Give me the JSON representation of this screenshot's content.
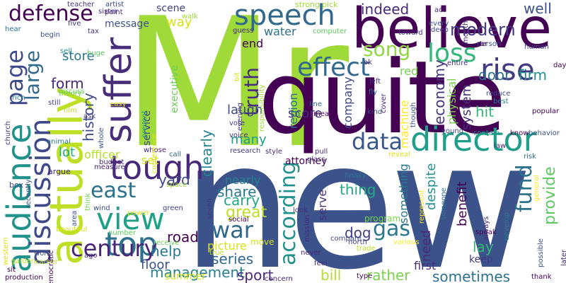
{
  "words": [
    {
      "text": "Mr",
      "color": "#a0da39"
    },
    {
      "text": "new",
      "color": "#3b528b"
    },
    {
      "text": "quite",
      "color": "#440154"
    },
    {
      "text": "believe",
      "color": "#440154"
    },
    {
      "text": "actually",
      "color": "#bddf26"
    },
    {
      "text": "audience",
      "color": "#21918c"
    },
    {
      "text": "director",
      "color": "#1f9e89"
    },
    {
      "text": "suffer",
      "color": "#472d7b"
    },
    {
      "text": "speech",
      "color": "#31688e"
    },
    {
      "text": "tough",
      "color": "#482878"
    },
    {
      "text": "top",
      "color": "#2c728e"
    },
    {
      "text": "view",
      "color": "#1fa187"
    },
    {
      "text": "discussion",
      "color": "#3e4989"
    },
    {
      "text": "defense",
      "color": "#440154"
    },
    {
      "text": "rise",
      "color": "#443983"
    },
    {
      "text": "loss",
      "color": "#35b779"
    },
    {
      "text": "effect",
      "color": "#31688e"
    },
    {
      "text": "data",
      "color": "#39568c"
    },
    {
      "text": "war",
      "color": "#31688e"
    },
    {
      "text": "century",
      "color": "#482475"
    },
    {
      "text": "page",
      "color": "#3e4989"
    },
    {
      "text": "east",
      "color": "#2c728e"
    },
    {
      "text": "according",
      "color": "#21918c"
    },
    {
      "text": "song",
      "color": "#90d743"
    },
    {
      "text": "truth",
      "color": "#472d7b"
    },
    {
      "text": "large",
      "color": "#31688e"
    },
    {
      "text": "fund",
      "color": "#2c728e"
    },
    {
      "text": "gas",
      "color": "#2a788e"
    },
    {
      "text": "economy",
      "color": "#46327e"
    },
    {
      "text": "modern",
      "color": "#443983"
    },
    {
      "text": "indeed",
      "color": "#482878"
    },
    {
      "text": "well",
      "color": "#3b528b"
    },
    {
      "text": "provide",
      "color": "#5ec962"
    },
    {
      "text": "great",
      "color": "#bddf26"
    },
    {
      "text": "management",
      "color": "#26828e"
    },
    {
      "text": "sometimes",
      "color": "#2c728e"
    },
    {
      "text": "sport",
      "color": "#482878"
    },
    {
      "text": "series",
      "color": "#31688e"
    },
    {
      "text": "rather",
      "color": "#7ad151"
    },
    {
      "text": "bill",
      "color": "#b5de2b"
    },
    {
      "text": "help",
      "color": "#2a788e"
    },
    {
      "text": "road",
      "color": "#440154"
    },
    {
      "text": "floor",
      "color": "#3b528b"
    },
    {
      "text": "dog",
      "color": "#404387"
    },
    {
      "text": "thing",
      "color": "#22a884"
    },
    {
      "text": "share",
      "color": "#2a788e"
    },
    {
      "text": "yard",
      "color": "#3e4989"
    },
    {
      "text": "carry",
      "color": "#22a884"
    },
    {
      "text": "hit",
      "color": "#35b779"
    },
    {
      "text": "door",
      "color": "#2c728e"
    },
    {
      "text": "firm",
      "color": "#21918c"
    },
    {
      "text": "history",
      "color": "#3e4989"
    },
    {
      "text": "form",
      "color": "#482878"
    },
    {
      "text": "store",
      "color": "#2a788e"
    },
    {
      "text": "lot",
      "color": "#22a884"
    },
    {
      "text": "set",
      "color": "#d8e219"
    },
    {
      "text": "officer",
      "color": "#b5de2b"
    },
    {
      "text": "water",
      "color": "#2c728e"
    },
    {
      "text": "end",
      "color": "#440154"
    },
    {
      "text": "way",
      "color": "#d8e219"
    },
    {
      "text": "scene",
      "color": "#404387"
    },
    {
      "text": "red",
      "color": "#7ad151"
    },
    {
      "text": "clearly",
      "color": "#26828e"
    },
    {
      "text": "laugh",
      "color": "#3e4989"
    },
    {
      "text": "many",
      "color": "#1f9e89"
    },
    {
      "text": "score",
      "color": "#472d7b"
    },
    {
      "text": "picture",
      "color": "#d8e219"
    },
    {
      "text": "nearly",
      "color": "#26828e"
    },
    {
      "text": "lay",
      "color": "#35b779"
    },
    {
      "text": "first",
      "color": "#472d7b"
    },
    {
      "text": "keep",
      "color": "#443983"
    },
    {
      "text": "need",
      "color": "#482878"
    },
    {
      "text": "attorney",
      "color": "#440154"
    },
    {
      "text": "benefit",
      "color": "#440154"
    },
    {
      "text": "region",
      "color": "#2c728e"
    },
    {
      "text": "company",
      "color": "#3e4989"
    },
    {
      "text": "machine",
      "color": "#fde725"
    },
    {
      "text": "something",
      "color": "#2a788e"
    },
    {
      "text": "despite",
      "color": "#21918c"
    },
    {
      "text": "system",
      "color": "#472d7b"
    },
    {
      "text": "physical",
      "color": "#7ad151"
    },
    {
      "text": "executive",
      "color": "#6ece58"
    },
    {
      "text": "service",
      "color": "#404387"
    },
    {
      "text": "serve",
      "color": "#46327e"
    },
    {
      "text": "program",
      "color": "#7ad151"
    },
    {
      "text": "summer",
      "color": "#d8e219"
    },
    {
      "text": "message",
      "color": "#3b528b"
    },
    {
      "text": "strong",
      "color": "#a0da39"
    },
    {
      "text": "pick",
      "color": "#a0da39"
    },
    {
      "text": "teacher",
      "color": "#46327e"
    },
    {
      "text": "artist",
      "color": "#3b528b"
    },
    {
      "text": "point",
      "color": "#482878"
    },
    {
      "text": "five",
      "color": "#46327e"
    },
    {
      "text": "tax",
      "color": "#46327e"
    },
    {
      "text": "hear",
      "color": "#2c728e"
    },
    {
      "text": "sell",
      "color": "#21918c"
    },
    {
      "text": "huge",
      "color": "#5ec962"
    },
    {
      "text": "rich",
      "color": "#26828e"
    },
    {
      "text": "still",
      "color": "#404387"
    },
    {
      "text": "theory",
      "color": "#7ad151"
    },
    {
      "text": "discuss",
      "color": "#6ece58"
    },
    {
      "text": "film",
      "color": "#bddf26"
    },
    {
      "text": "church",
      "color": "#443983"
    },
    {
      "text": "animal",
      "color": "#2a788e"
    },
    {
      "text": "argue",
      "color": "#482878"
    },
    {
      "text": "box",
      "color": "#3e4989"
    },
    {
      "text": "budget",
      "color": "#482878"
    },
    {
      "text": "measure",
      "color": "#482878"
    },
    {
      "text": "wind",
      "color": "#3b528b"
    },
    {
      "text": "whose",
      "color": "#482878"
    },
    {
      "text": "call",
      "color": "#31688e"
    },
    {
      "text": "green",
      "color": "#404387"
    },
    {
      "text": "guess",
      "color": "#482878"
    },
    {
      "text": "vote",
      "color": "#443983"
    },
    {
      "text": "voice",
      "color": "#46327e"
    },
    {
      "text": "research",
      "color": "#443983"
    },
    {
      "text": "style",
      "color": "#472d7b"
    },
    {
      "text": "social",
      "color": "#440154"
    },
    {
      "text": "move",
      "color": "#d8e219"
    },
    {
      "text": "concern",
      "color": "#482878"
    },
    {
      "text": "never",
      "color": "#482878"
    },
    {
      "text": "feel",
      "color": "#472d7b"
    },
    {
      "text": "type",
      "color": "#440154"
    },
    {
      "text": "left",
      "color": "#46327e"
    },
    {
      "text": "ok",
      "color": "#482878"
    },
    {
      "text": "mean",
      "color": "#440154"
    },
    {
      "text": "line",
      "color": "#31688e"
    },
    {
      "text": "kind",
      "color": "#3e4989"
    },
    {
      "text": "reveal",
      "color": "#dde318"
    },
    {
      "text": "finally",
      "color": "#2c728e"
    },
    {
      "text": "compare",
      "color": "#3e4989"
    },
    {
      "text": "trade",
      "color": "#bddf26"
    },
    {
      "text": "various",
      "color": "#fde725"
    },
    {
      "text": "north",
      "color": "#404387"
    },
    {
      "text": "mission",
      "color": "#482878"
    },
    {
      "text": "look",
      "color": "#46327e"
    },
    {
      "text": "pull",
      "color": "#472d7b"
    },
    {
      "text": "glass",
      "color": "#482878"
    },
    {
      "text": "young",
      "color": "#3e4989"
    },
    {
      "text": "contain",
      "color": "#21918c"
    },
    {
      "text": "know",
      "color": "#440154"
    },
    {
      "text": "behavior",
      "color": "#3b528b"
    },
    {
      "text": "law",
      "color": "#482878"
    },
    {
      "text": "risk",
      "color": "#2c728e"
    },
    {
      "text": "reduce",
      "color": "#3e4989"
    },
    {
      "text": "best",
      "color": "#26828e"
    },
    {
      "text": "popular",
      "color": "#440154"
    },
    {
      "text": "thank",
      "color": "#440154"
    },
    {
      "text": "speak",
      "color": "#440154"
    },
    {
      "text": "always",
      "color": "#482878"
    },
    {
      "text": "develop",
      "color": "#2a788e"
    },
    {
      "text": "possible",
      "color": "#3b528b"
    },
    {
      "text": "later",
      "color": "#482878"
    },
    {
      "text": "toward",
      "color": "#472d7b"
    },
    {
      "text": "every",
      "color": "#3b528b"
    },
    {
      "text": "deep",
      "color": "#3e4989"
    },
    {
      "text": "month",
      "color": "#482878"
    },
    {
      "text": "human",
      "color": "#3e4989"
    },
    {
      "text": "act",
      "color": "#482878"
    },
    {
      "text": "day",
      "color": "#440154"
    },
    {
      "text": "entire",
      "color": "#46327e"
    },
    {
      "text": "person",
      "color": "#3b528b"
    },
    {
      "text": "car",
      "color": "#440154"
    },
    {
      "text": "cover",
      "color": "#482878"
    },
    {
      "text": "fly",
      "color": "#31688e"
    },
    {
      "text": "though",
      "color": "#3b528b"
    },
    {
      "text": "ago",
      "color": "#472d7b"
    },
    {
      "text": "sister",
      "color": "#443983"
    },
    {
      "text": "begin",
      "color": "#3b528b"
    },
    {
      "text": "computer",
      "color": "#5ec962"
    },
    {
      "text": "walk",
      "color": "#a0da39"
    },
    {
      "text": "production",
      "color": "#440154"
    },
    {
      "text": "sit",
      "color": "#440154"
    },
    {
      "text": "work",
      "color": "#3b528b"
    },
    {
      "text": "garden",
      "color": "#bddf26"
    },
    {
      "text": "western",
      "color": "#d8e219"
    },
    {
      "text": "career",
      "color": "#b5de2b"
    },
    {
      "text": "beautiful",
      "color": "#d8e219"
    },
    {
      "text": "number",
      "color": "#5ec962"
    },
    {
      "text": "receive",
      "color": "#6ece58"
    },
    {
      "text": "true",
      "color": "#bddf26"
    },
    {
      "text": "democratic",
      "color": "#440154"
    },
    {
      "text": "area",
      "color": "#3b528b"
    },
    {
      "text": "think",
      "color": "#7ad151"
    },
    {
      "text": "ask",
      "color": "#443983"
    },
    {
      "text": "whole",
      "color": "#3b528b"
    },
    {
      "text": "easy",
      "color": "#d8e219"
    },
    {
      "text": "prevent",
      "color": "#1f9e89"
    },
    {
      "text": "conference",
      "color": "#dde318"
    },
    {
      "text": "space",
      "color": "#a0da39"
    },
    {
      "text": "power",
      "color": "#d8e219"
    },
    {
      "text": "seven",
      "color": "#46327e"
    },
    {
      "text": "evening",
      "color": "#443983"
    },
    {
      "text": "responsibility",
      "color": "#a0da39"
    },
    {
      "text": "bit",
      "color": "#d8e219"
    },
    {
      "text": "represent",
      "color": "#fde725"
    },
    {
      "text": "recently",
      "color": "#3b528b"
    },
    {
      "text": "someone",
      "color": "#2c728e"
    },
    {
      "text": "general",
      "color": "#fde725"
    }
  ]
}
